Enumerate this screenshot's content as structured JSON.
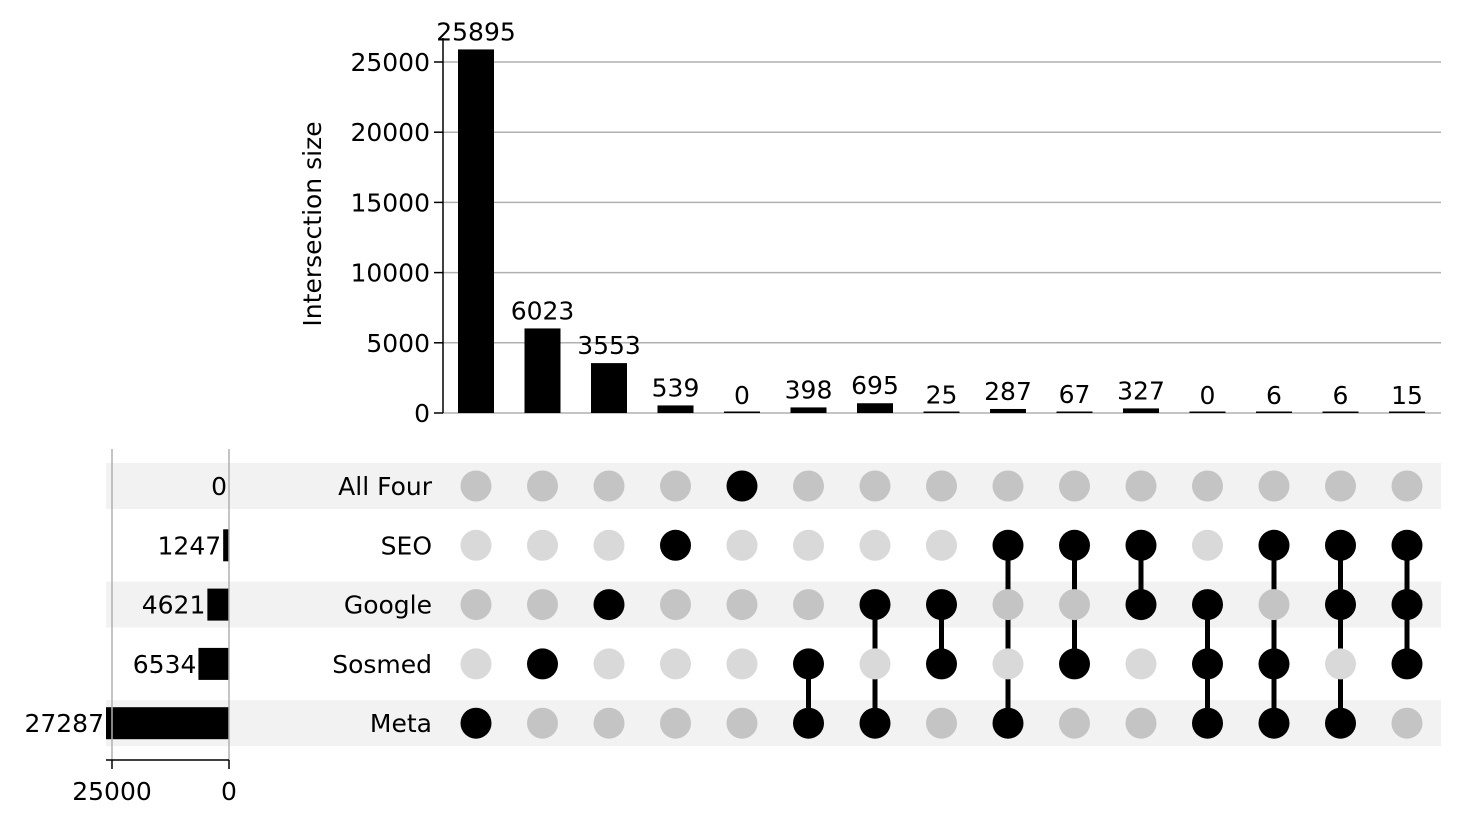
{
  "chart_data": {
    "type": "bar",
    "ylabel": "Intersection size",
    "ylim": [
      0,
      27500
    ],
    "yticks": [
      0,
      5000,
      10000,
      15000,
      20000,
      25000
    ],
    "grid": true,
    "sets": [
      "All Four",
      "SEO",
      "Google",
      "Sosmed",
      "Meta"
    ],
    "set_sizes": [
      0,
      1247,
      4621,
      6534,
      27287
    ],
    "set_size_ticks": [
      25000,
      0
    ],
    "set_size_lim": [
      0,
      27287
    ],
    "intersections": [
      {
        "members": [
          "Meta"
        ],
        "value": 25895
      },
      {
        "members": [
          "Sosmed"
        ],
        "value": 6023
      },
      {
        "members": [
          "Google"
        ],
        "value": 3553
      },
      {
        "members": [
          "SEO"
        ],
        "value": 539
      },
      {
        "members": [
          "All Four"
        ],
        "value": 0
      },
      {
        "members": [
          "Sosmed",
          "Meta"
        ],
        "value": 398
      },
      {
        "members": [
          "Google",
          "Meta"
        ],
        "value": 695
      },
      {
        "members": [
          "Google",
          "Sosmed"
        ],
        "value": 25
      },
      {
        "members": [
          "SEO",
          "Meta"
        ],
        "value": 287
      },
      {
        "members": [
          "SEO",
          "Sosmed"
        ],
        "value": 67
      },
      {
        "members": [
          "SEO",
          "Google"
        ],
        "value": 327
      },
      {
        "members": [
          "Google",
          "Sosmed",
          "Meta"
        ],
        "value": 0
      },
      {
        "members": [
          "SEO",
          "Sosmed",
          "Meta"
        ],
        "value": 6
      },
      {
        "members": [
          "SEO",
          "Google",
          "Meta"
        ],
        "value": 6
      },
      {
        "members": [
          "SEO",
          "Google",
          "Sosmed"
        ],
        "value": 15
      }
    ],
    "colors": {
      "bar": "#000000",
      "dot_active": "#000000",
      "dot_inactive_band": "#c4c4c4",
      "dot_inactive_plain": "#d9d9d9",
      "band": "#f2f2f2",
      "grid": "#b0b0b0"
    }
  }
}
